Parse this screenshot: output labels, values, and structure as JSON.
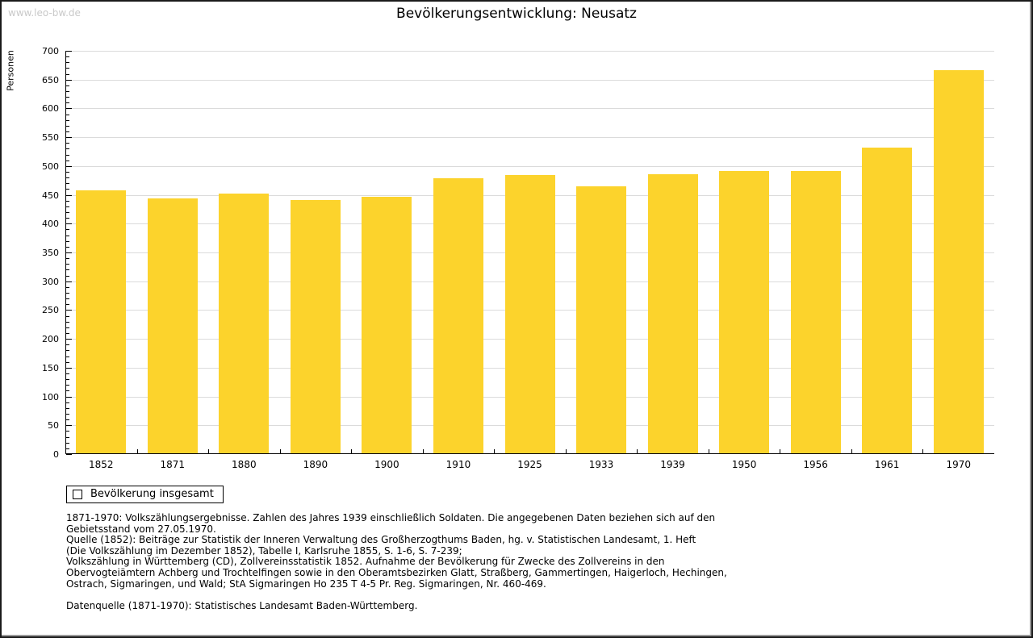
{
  "watermark": "www.leo-bw.de",
  "title": "Bevölkerungsentwicklung: Neusatz",
  "chart_data": {
    "type": "bar",
    "title": "Bevölkerungsentwicklung: Neusatz",
    "xlabel": "",
    "ylabel": "Personen",
    "ylim": [
      0,
      700
    ],
    "ytick_step": 50,
    "ytick_minor_step": 10,
    "grid": true,
    "legend_position": "bottom-left",
    "categories": [
      "1852",
      "1871",
      "1880",
      "1890",
      "1900",
      "1910",
      "1925",
      "1933",
      "1939",
      "1950",
      "1956",
      "1961",
      "1970"
    ],
    "series": [
      {
        "name": "Bevölkerung insgesamt",
        "values": [
          456,
          443,
          451,
          439,
          445,
          478,
          483,
          464,
          485,
          490,
          490,
          530,
          665
        ]
      }
    ],
    "bar_color": "#FCD32C",
    "grid_color": "#DBDBDB"
  },
  "legend": {
    "items": [
      {
        "label": "Bevölkerung insgesamt",
        "color": "#FCD32C"
      }
    ]
  },
  "footnotes": {
    "lines": [
      "1871-1970: Volkszählungsergebnisse. Zahlen des Jahres 1939 einschließlich Soldaten. Die angegebenen Daten beziehen sich auf den",
      "Gebietsstand vom 27.05.1970.",
      "Quelle (1852): Beiträge zur Statistik der Inneren Verwaltung des Großherzogthums Baden, hg. v. Statistischen Landesamt, 1. Heft",
      "(Die Volkszählung im Dezember 1852), Tabelle I, Karlsruhe 1855, S. 1-6, S. 7-239;",
      "Volkszählung in Württemberg (CD), Zollvereinsstatistik 1852. Aufnahme der Bevölkerung für Zwecke des Zollvereins in den",
      "Obervogteiämtern Achberg und Trochtelfingen sowie in den Oberamtsbezirken Glatt, Straßberg, Gammertingen, Haigerloch, Hechingen,",
      "Ostrach, Sigmaringen, und Wald; StA Sigmaringen Ho 235 T 4-5 Pr. Reg. Sigmaringen, Nr. 460-469."
    ],
    "datasource": "Datenquelle (1871-1970): Statistisches Landesamt Baden-Württemberg."
  }
}
